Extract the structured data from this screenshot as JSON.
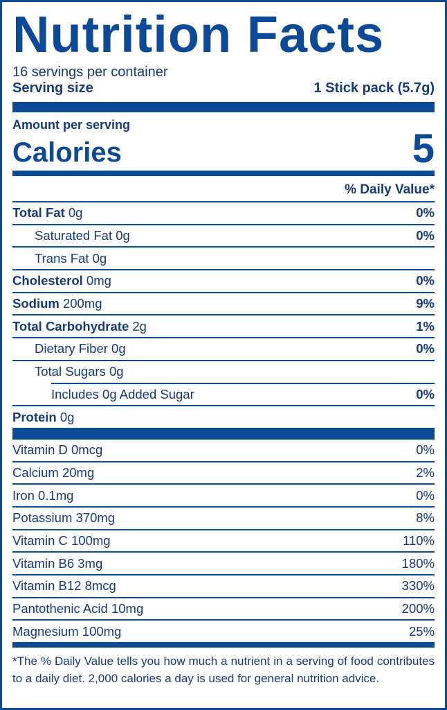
{
  "title": "Nutrition Facts",
  "servings": "16 servings per container",
  "serving_size_label": "Serving size",
  "serving_size": "1 Stick pack (5.7g)",
  "amount_per_serving": "Amount per serving",
  "calories_label": "Calories",
  "calories": 5,
  "dv_header": "% Daily Value*",
  "nutrients": [
    {
      "name": "Total Fat",
      "amount": "0g",
      "dv": "0%"
    },
    {
      "name": "Saturated Fat",
      "amount": "0g",
      "dv": "0%"
    },
    {
      "name": "Trans Fat",
      "amount": "0g"
    },
    {
      "name": "Cholesterol",
      "amount": "0mg",
      "dv": "0%"
    },
    {
      "name": "Sodium",
      "amount": "200mg",
      "dv": "9%"
    },
    {
      "name": "Total Carbohydrate",
      "amount": "2g",
      "dv": "1%"
    },
    {
      "name": "Dietary Fiber",
      "amount": "0g",
      "dv": "0%"
    },
    {
      "name": "Total Sugars",
      "amount": "0g"
    },
    {
      "name": "Includes 0g Added Sugar",
      "dv": "0%"
    },
    {
      "name": "Protein",
      "amount": "0g"
    }
  ],
  "vitamins": [
    {
      "name": "Vitamin D",
      "amount": "0mcg",
      "dv": "0%"
    },
    {
      "name": "Calcium",
      "amount": "20mg",
      "dv": "2%"
    },
    {
      "name": "Iron",
      "amount": "0.1mg",
      "dv": "0%"
    },
    {
      "name": "Potassium",
      "amount": "370mg",
      "dv": "8%"
    },
    {
      "name": "Vitamin C",
      "amount": "100mg",
      "dv": "110%"
    },
    {
      "name": "Vitamin B6",
      "amount": "3mg",
      "dv": "180%"
    },
    {
      "name": "Vitamin B12",
      "amount": "8mcg",
      "dv": "330%"
    },
    {
      "name": "Pantothenic Acid",
      "amount": "10mg",
      "dv": "200%"
    },
    {
      "name": "Magnesium",
      "amount": "100mg",
      "dv": "25%"
    }
  ],
  "footnote": "*The % Daily Value tells you how much a nutrient in a serving of food contributes to a daily diet. 2,000 calories a day is used for general nutrition advice."
}
